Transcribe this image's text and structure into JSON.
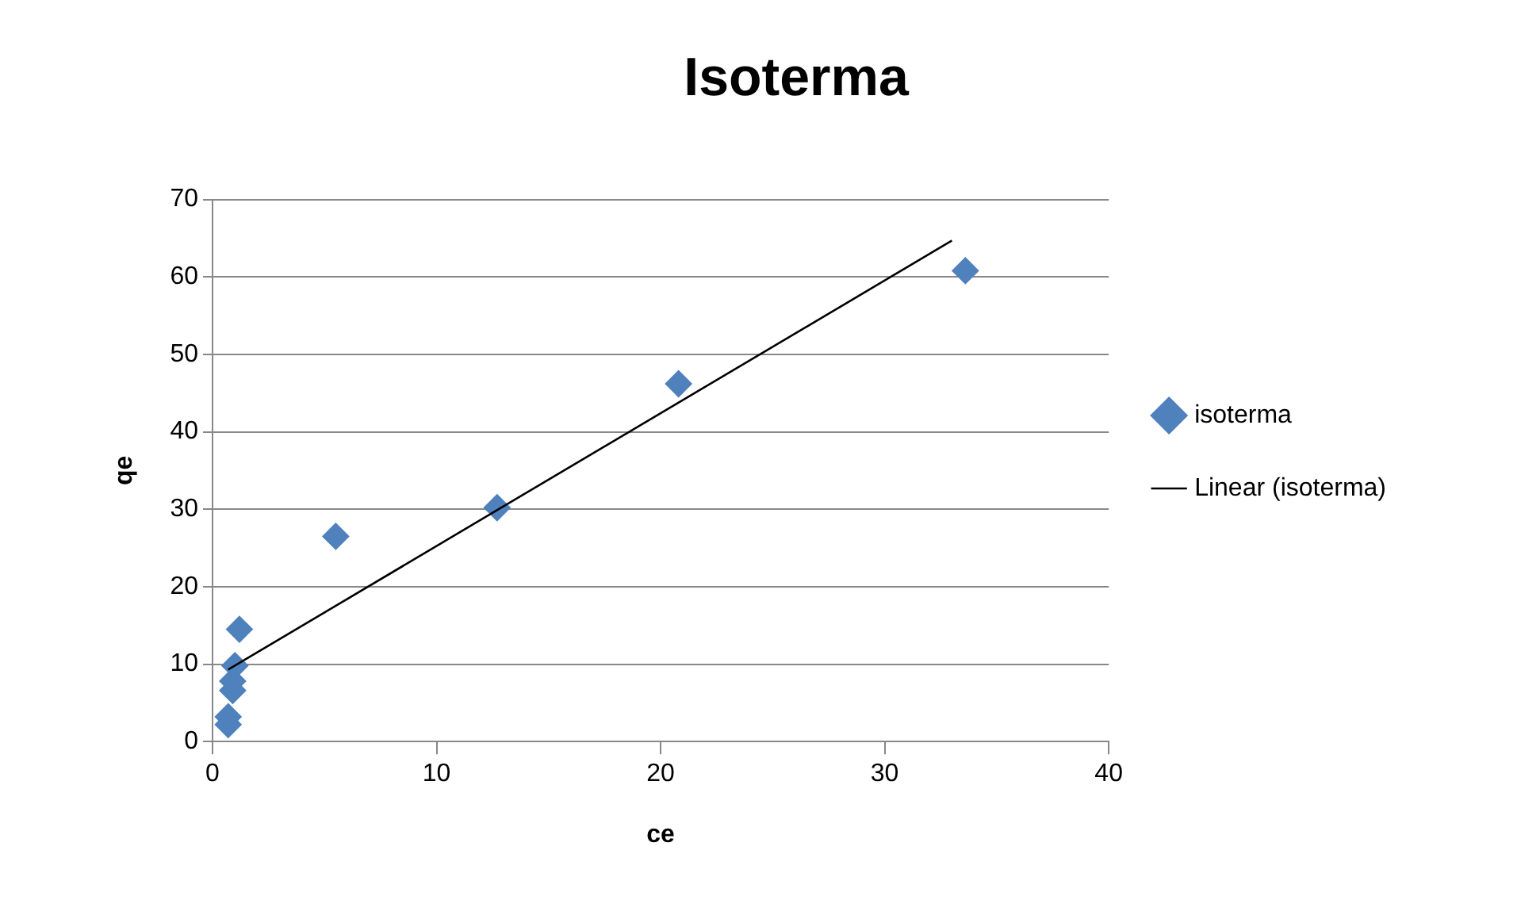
{
  "chart_data": {
    "type": "scatter",
    "title": "Isoterma",
    "xlabel": "ce",
    "ylabel": "qe",
    "series": [
      {
        "name": "isoterma",
        "color": "#4f81bd",
        "marker": "diamond",
        "x": [
          0.7,
          0.7,
          0.9,
          0.9,
          1.0,
          1.2,
          5.5,
          12.7,
          20.8,
          33.6
        ],
        "values": [
          2.2,
          3.2,
          6.6,
          7.8,
          9.8,
          14.5,
          26.5,
          30.2,
          46.2,
          60.8
        ]
      },
      {
        "name": "Linear (isoterma)",
        "type": "line",
        "color": "#000000",
        "marker": "none",
        "line_style": "solid",
        "x": [
          0.7,
          33.0
        ],
        "values": [
          9.3,
          64.7
        ]
      }
    ],
    "xlim": [
      0,
      40
    ],
    "xticks": [
      0,
      10,
      20,
      30,
      40
    ],
    "ylim": [
      0,
      70
    ],
    "yticks": [
      0,
      10,
      20,
      30,
      40,
      50,
      60,
      70
    ],
    "grid": "y",
    "legend": "right"
  }
}
